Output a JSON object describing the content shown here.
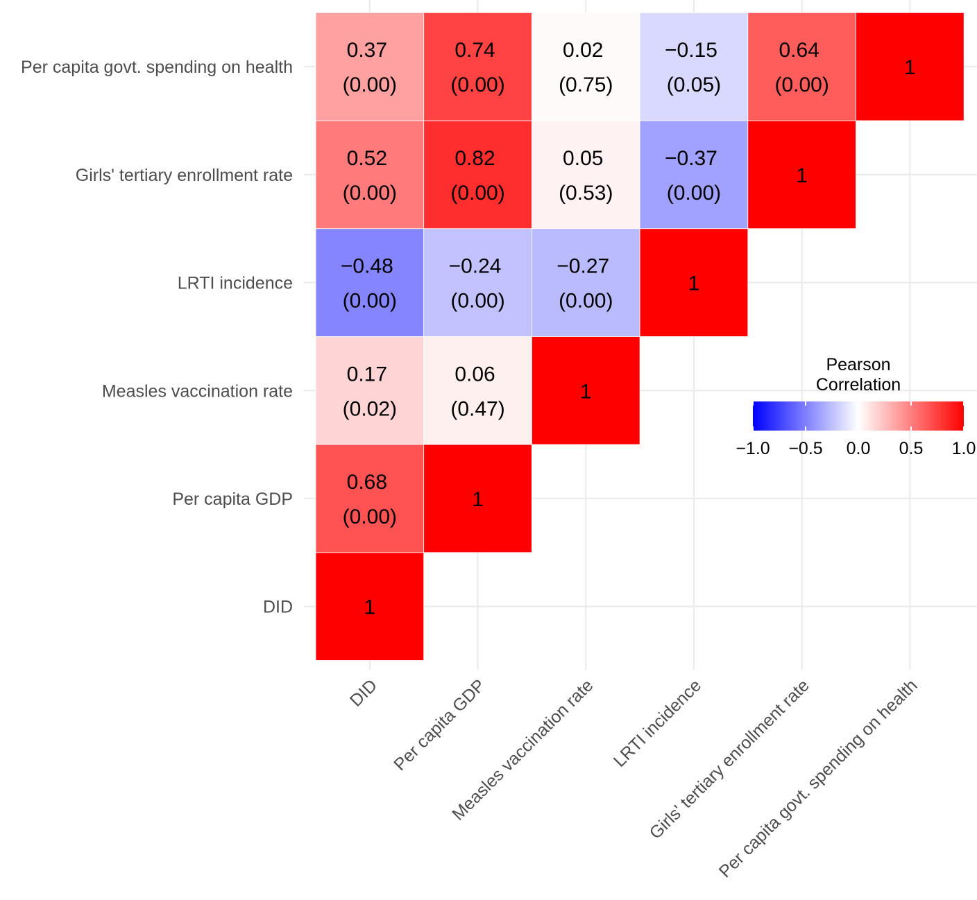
{
  "chart_data": {
    "type": "heatmap",
    "title": "",
    "xlabel": "",
    "ylabel": "",
    "variables": [
      "DID",
      "Per capita GDP",
      "Measles vaccination rate",
      "LRTI incidence",
      "Girls' tertiary enrollment rate",
      "Per capita govt. spending on health"
    ],
    "cells": [
      {
        "row": "DID",
        "col": "DID",
        "r": 1,
        "label": "1",
        "p": ""
      },
      {
        "row": "Per capita GDP",
        "col": "DID",
        "r": 0.68,
        "label": "0.68",
        "p": "(0.00)"
      },
      {
        "row": "Per capita GDP",
        "col": "Per capita GDP",
        "r": 1,
        "label": "1",
        "p": ""
      },
      {
        "row": "Measles vaccination rate",
        "col": "DID",
        "r": 0.17,
        "label": "0.17",
        "p": "(0.02)"
      },
      {
        "row": "Measles vaccination rate",
        "col": "Per capita GDP",
        "r": 0.06,
        "label": "0.06",
        "p": "(0.47)"
      },
      {
        "row": "Measles vaccination rate",
        "col": "Measles vaccination rate",
        "r": 1,
        "label": "1",
        "p": ""
      },
      {
        "row": "LRTI incidence",
        "col": "DID",
        "r": -0.48,
        "label": "−0.48",
        "p": "(0.00)"
      },
      {
        "row": "LRTI incidence",
        "col": "Per capita GDP",
        "r": -0.24,
        "label": "−0.24",
        "p": "(0.00)"
      },
      {
        "row": "LRTI incidence",
        "col": "Measles vaccination rate",
        "r": -0.27,
        "label": "−0.27",
        "p": "(0.00)"
      },
      {
        "row": "LRTI incidence",
        "col": "LRTI incidence",
        "r": 1,
        "label": "1",
        "p": ""
      },
      {
        "row": "Girls' tertiary enrollment rate",
        "col": "DID",
        "r": 0.52,
        "label": "0.52",
        "p": "(0.00)"
      },
      {
        "row": "Girls' tertiary enrollment rate",
        "col": "Per capita GDP",
        "r": 0.82,
        "label": "0.82",
        "p": "(0.00)"
      },
      {
        "row": "Girls' tertiary enrollment rate",
        "col": "Measles vaccination rate",
        "r": 0.05,
        "label": "0.05",
        "p": "(0.53)"
      },
      {
        "row": "Girls' tertiary enrollment rate",
        "col": "LRTI incidence",
        "r": -0.37,
        "label": "−0.37",
        "p": "(0.00)"
      },
      {
        "row": "Girls' tertiary enrollment rate",
        "col": "Girls' tertiary enrollment rate",
        "r": 1,
        "label": "1",
        "p": ""
      },
      {
        "row": "Per capita govt. spending on health",
        "col": "DID",
        "r": 0.37,
        "label": "0.37",
        "p": "(0.00)"
      },
      {
        "row": "Per capita govt. spending on health",
        "col": "Per capita GDP",
        "r": 0.74,
        "label": "0.74",
        "p": "(0.00)"
      },
      {
        "row": "Per capita govt. spending on health",
        "col": "Measles vaccination rate",
        "r": 0.02,
        "label": "0.02",
        "p": "(0.75)"
      },
      {
        "row": "Per capita govt. spending on health",
        "col": "LRTI incidence",
        "r": -0.15,
        "label": "−0.15",
        "p": "(0.05)"
      },
      {
        "row": "Per capita govt. spending on health",
        "col": "Girls' tertiary enrollment rate",
        "r": 0.64,
        "label": "0.64",
        "p": "(0.00)"
      },
      {
        "row": "Per capita govt. spending on health",
        "col": "Per capita govt. spending on health",
        "r": 1,
        "label": "1",
        "p": ""
      }
    ],
    "legend": {
      "title_line1": "Pearson",
      "title_line2": "Correlation",
      "ticks": [
        -1.0,
        -0.5,
        0.0,
        0.5,
        1.0
      ],
      "tick_labels": [
        "−1.0",
        "−0.5",
        "0.0",
        "0.5",
        "1.0"
      ],
      "range": [
        -1,
        1
      ],
      "placement": "right",
      "low_color": "#0000ff",
      "mid_color": "#ffffff",
      "high_color": "#ff0000"
    }
  }
}
